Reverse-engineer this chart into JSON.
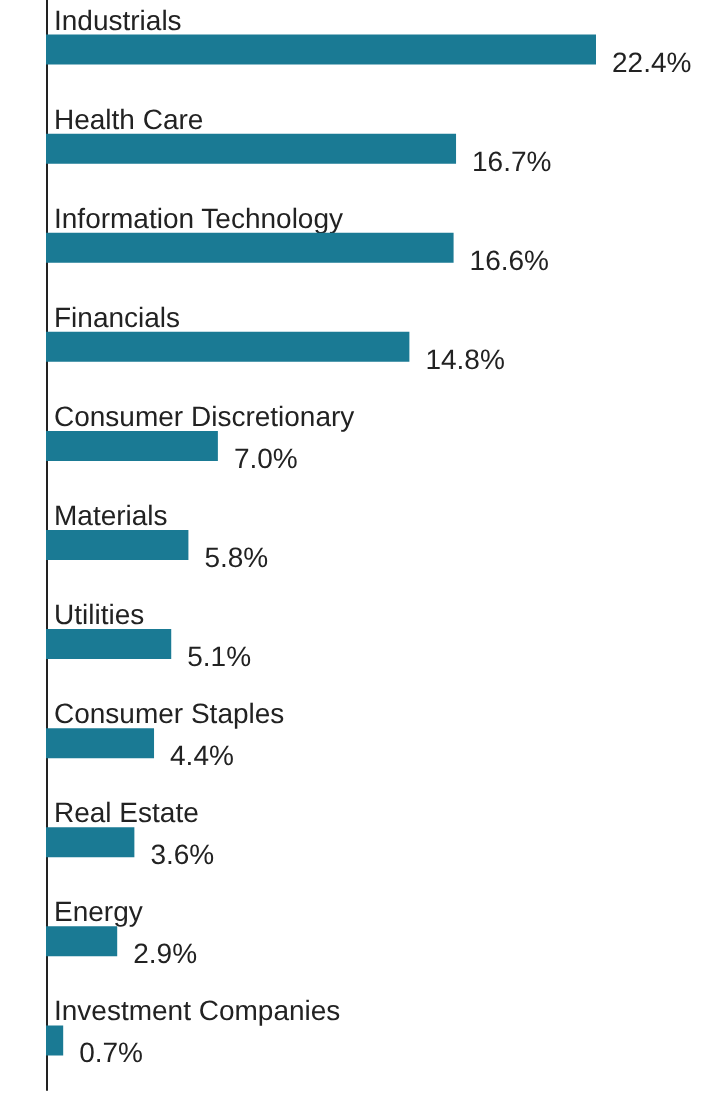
{
  "chart_data": {
    "type": "bar",
    "orientation": "horizontal",
    "categories": [
      "Industrials",
      "Health Care",
      "Information Technology",
      "Financials",
      "Consumer Discretionary",
      "Materials",
      "Utilities",
      "Consumer Staples",
      "Real Estate",
      "Energy",
      "Investment Companies"
    ],
    "values": [
      22.4,
      16.7,
      16.6,
      14.8,
      7.0,
      5.8,
      5.1,
      4.4,
      3.6,
      2.9,
      0.7
    ],
    "value_labels": [
      "22.4%",
      "16.7%",
      "16.6%",
      "14.8%",
      "7.0%",
      "5.8%",
      "5.1%",
      "4.4%",
      "3.6%",
      "2.9%",
      "0.7%"
    ],
    "color": "#1a7a94"
  }
}
